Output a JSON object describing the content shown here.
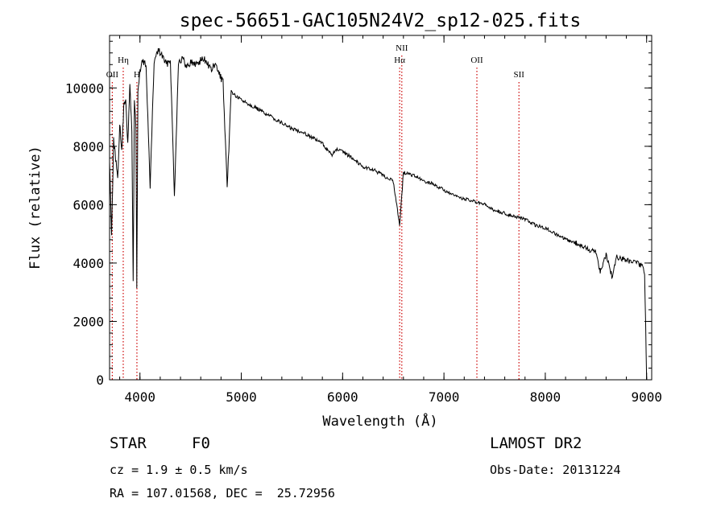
{
  "chart_data": {
    "type": "line",
    "title": "spec-56651-GAC105N24V2_sp12-025.fits",
    "xlabel": "Wavelength (Å)",
    "ylabel": "Flux (relative)",
    "xlim": [
      3700,
      9050
    ],
    "ylim": [
      0,
      11800
    ],
    "xticks": [
      4000,
      5000,
      6000,
      7000,
      8000,
      9000
    ],
    "yticks": [
      0,
      2000,
      4000,
      6000,
      8000,
      10000
    ],
    "x_minor_step": 200,
    "y_minor_step": 400,
    "grid": false,
    "line_color": "#000000",
    "marker_color": "#cc0000",
    "line_markers": [
      {
        "label": "OII",
        "wavelength": 3727,
        "row": 2
      },
      {
        "label": "Hη",
        "wavelength": 3835,
        "row": 1
      },
      {
        "label": "H",
        "wavelength": 3970,
        "row": 2
      },
      {
        "label": "NII",
        "wavelength": 6584,
        "row": 0
      },
      {
        "label": "Hα",
        "wavelength": 6563,
        "row": 1
      },
      {
        "label": "OII",
        "wavelength": 7325,
        "row": 1
      },
      {
        "label": "SII",
        "wavelength": 7740,
        "row": 2
      }
    ],
    "series": [
      {
        "x": [
          3700,
          3720,
          3740,
          3760,
          3780,
          3800,
          3820,
          3840,
          3860,
          3880,
          3900,
          3920,
          3933,
          3945,
          3960,
          3969,
          3980,
          4000,
          4020,
          4060,
          4101,
          4140,
          4180,
          4220,
          4260,
          4300,
          4340,
          4380,
          4420,
          4460,
          4500,
          4540,
          4580,
          4620,
          4660,
          4700,
          4740,
          4780,
          4820,
          4861,
          4900,
          4950,
          5000,
          5100,
          5200,
          5300,
          5400,
          5500,
          5600,
          5700,
          5800,
          5890,
          5950,
          6000,
          6100,
          6200,
          6300,
          6400,
          6500,
          6563,
          6600,
          6700,
          6800,
          6900,
          7000,
          7100,
          7200,
          7300,
          7400,
          7500,
          7600,
          7700,
          7800,
          7900,
          8000,
          8100,
          8200,
          8300,
          8400,
          8500,
          8542,
          8600,
          8662,
          8700,
          8800,
          8900,
          8950,
          8980,
          9000,
          9020
        ],
        "y": [
          7500,
          5000,
          8200,
          7600,
          6800,
          8800,
          7800,
          9300,
          9700,
          8000,
          10100,
          8600,
          3300,
          9600,
          8700,
          3100,
          9900,
          10500,
          10900,
          10800,
          6600,
          10900,
          11300,
          11100,
          10800,
          11000,
          6300,
          10900,
          11000,
          10700,
          10900,
          10800,
          10900,
          11000,
          10900,
          10600,
          10800,
          10500,
          10200,
          6500,
          9900,
          9700,
          9600,
          9400,
          9200,
          9000,
          8800,
          8600,
          8500,
          8300,
          8100,
          7700,
          7900,
          7800,
          7600,
          7300,
          7200,
          7000,
          6800,
          5300,
          7100,
          7000,
          6800,
          6700,
          6500,
          6300,
          6200,
          6100,
          6000,
          5800,
          5700,
          5600,
          5500,
          5300,
          5200,
          5000,
          4800,
          4700,
          4500,
          4400,
          3700,
          4300,
          3500,
          4200,
          4100,
          4000,
          3900,
          3700,
          0,
          0
        ]
      }
    ]
  },
  "footer": {
    "class_label": "STAR",
    "subclass": "F0",
    "survey": "LAMOST DR2",
    "redshift": "cz = 1.9 ± 0.5 km/s",
    "obs_date": "Obs-Date: 20131224",
    "coords": "RA = 107.01568, DEC =  25.72956"
  }
}
